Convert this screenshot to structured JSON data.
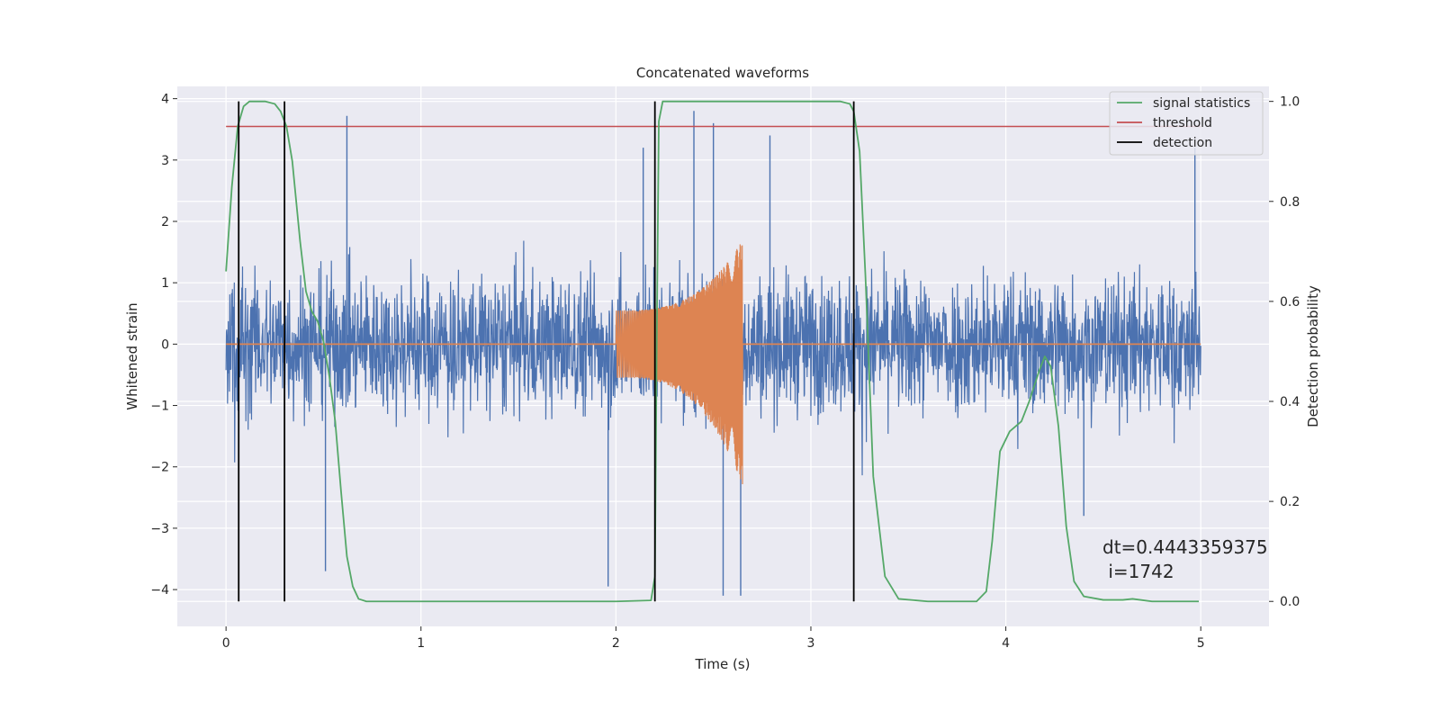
{
  "chart_data": {
    "type": "line",
    "title": "Concatenated waveforms",
    "xlabel": "Time (s)",
    "ylabel": "Whitened strain",
    "ylabel_right": "Detection probability",
    "xlim": [
      -0.25,
      5.35
    ],
    "ylim": [
      -4.6,
      4.2
    ],
    "ylim_right": [
      -0.05,
      1.03
    ],
    "xticks": [
      0,
      1,
      2,
      3,
      4,
      5
    ],
    "yticks": [
      -4,
      -3,
      -2,
      -1,
      0,
      1,
      2,
      3,
      4
    ],
    "yticks_right": [
      0.0,
      0.2,
      0.4,
      0.6,
      0.8,
      1.0
    ],
    "xtick_labels": [
      "0",
      "1",
      "2",
      "3",
      "4",
      "5"
    ],
    "ytick_labels": [
      "−4",
      "−3",
      "−2",
      "−1",
      "0",
      "1",
      "2",
      "3",
      "4"
    ],
    "ytick_right_labels": [
      "0.0",
      "0.2",
      "0.4",
      "0.6",
      "0.8",
      "1.0"
    ],
    "grid": true,
    "legend_position": "top-right",
    "colors": {
      "background": "#eaeaf2",
      "noise": "#4c72b0",
      "injection": "#dd8452",
      "statistic": "#55a868",
      "threshold": "#c44e52",
      "detection": "#000000"
    },
    "series": [
      {
        "name": "signal statistics",
        "axis": "right",
        "x": [
          0.0,
          0.03,
          0.06,
          0.09,
          0.12,
          0.2,
          0.25,
          0.28,
          0.31,
          0.34,
          0.38,
          0.41,
          0.44,
          0.47,
          0.5,
          0.53,
          0.56,
          0.59,
          0.62,
          0.65,
          0.68,
          0.72,
          0.8,
          1.0,
          1.5,
          2.0,
          2.18,
          2.2,
          2.21,
          2.22,
          2.24,
          2.3,
          2.5,
          3.0,
          3.15,
          3.2,
          3.22,
          3.25,
          3.28,
          3.32,
          3.38,
          3.45,
          3.6,
          3.85,
          3.9,
          3.93,
          3.97,
          4.02,
          4.08,
          4.12,
          4.17,
          4.2,
          4.23,
          4.27,
          4.31,
          4.35,
          4.4,
          4.5,
          4.6,
          4.65,
          4.75,
          4.99
        ],
        "values": [
          0.66,
          0.83,
          0.95,
          0.99,
          1.0,
          1.0,
          0.995,
          0.98,
          0.95,
          0.88,
          0.72,
          0.62,
          0.58,
          0.56,
          0.52,
          0.45,
          0.36,
          0.22,
          0.09,
          0.03,
          0.005,
          0.0,
          0.0,
          0.0,
          0.0,
          0.0,
          0.002,
          0.05,
          0.55,
          0.96,
          1.0,
          1.0,
          1.0,
          1.0,
          1.0,
          0.995,
          0.98,
          0.9,
          0.65,
          0.25,
          0.05,
          0.005,
          0.0,
          0.0,
          0.02,
          0.12,
          0.3,
          0.34,
          0.36,
          0.4,
          0.46,
          0.49,
          0.47,
          0.35,
          0.15,
          0.04,
          0.01,
          0.003,
          0.003,
          0.005,
          0.0,
          0.0
        ]
      },
      {
        "name": "threshold",
        "axis": "right",
        "x": [
          0.0,
          5.0
        ],
        "values": [
          0.95,
          0.95
        ]
      },
      {
        "name": "detection",
        "axis": "right",
        "vlines": [
          0.065,
          0.3,
          2.2,
          3.22
        ],
        "range": [
          0.0,
          1.0
        ]
      },
      {
        "axis": "left",
        "description_free": true,
        "x_range": [
          0.0,
          5.0
        ],
        "band": 0.8,
        "peaks": [
          {
            "x": 0.62,
            "y": 3.72
          },
          {
            "x": 1.96,
            "y": -3.95
          },
          {
            "x": 2.14,
            "y": 3.2
          },
          {
            "x": 2.4,
            "y": 3.8
          },
          {
            "x": 2.5,
            "y": 3.6
          },
          {
            "x": 2.55,
            "y": -4.1
          },
          {
            "x": 2.64,
            "y": -4.1
          },
          {
            "x": 2.79,
            "y": 3.4
          },
          {
            "x": 0.51,
            "y": -3.7
          },
          {
            "x": 4.97,
            "y": 3.2
          },
          {
            "x": 4.4,
            "y": -2.8
          }
        ]
      },
      {
        "axis": "left",
        "chirp": {
          "x_start": 2.0,
          "x_end": 2.65,
          "amp_start": 0.55,
          "amp_end_top": 1.7,
          "amp_end_bottom": -2.3
        }
      }
    ],
    "annotations": [
      "dt=0.4443359375",
      " i=1742"
    ]
  }
}
